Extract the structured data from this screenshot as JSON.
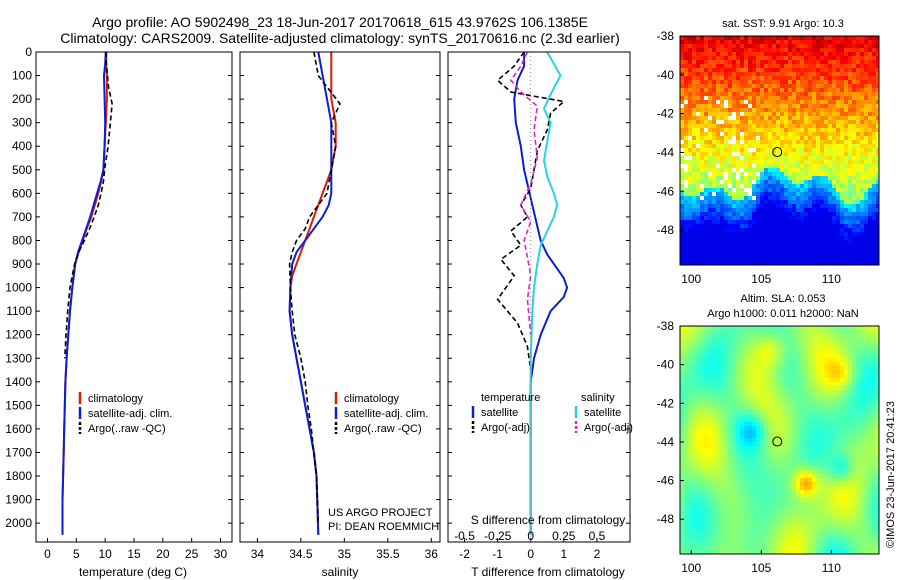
{
  "header": {
    "line1": "Argo profile: AO 5902498_23 18-Jun-2017 20170618_615 43.9762S 106.1385E",
    "line2": "Climatology: CARS2009. Satellite-adjusted climatology: synTS_20170616.nc (2.3d earlier)"
  },
  "side_label": "©IMOS 23-Jun-2017 20:41:23",
  "project_credit": {
    "line1": "US ARGO PROJECT",
    "line2": "PI: DEAN ROEMMICH"
  },
  "colors": {
    "climatology": "#d81e05",
    "satellite": "#0a1ed8",
    "argo": "#000000",
    "satellite_diff": "#22d5e0",
    "argo_sal_diff": "#e020d0"
  },
  "chart_data": [
    {
      "type": "line",
      "id": "temperature",
      "xlabel": "temperature (deg C)",
      "ylabel": "",
      "xlim": [
        -2,
        32
      ],
      "ylim": [
        2080,
        0
      ],
      "xticks": [
        0,
        5,
        10,
        15,
        20,
        25,
        30
      ],
      "yticks": [
        0,
        100,
        200,
        300,
        400,
        500,
        600,
        700,
        800,
        900,
        1000,
        1100,
        1200,
        1300,
        1400,
        1500,
        1600,
        1700,
        1800,
        1900,
        2000
      ],
      "legend": [
        "climatology",
        "satellite-adj. clim.",
        "Argo(..raw -QC)"
      ],
      "series": [
        {
          "name": "climatology",
          "x": [
            10.2,
            10.2,
            10.3,
            10.3,
            10.1,
            9.9,
            9.7,
            9.3,
            8.8,
            8.2,
            7.6,
            6.8,
            6.1,
            5.4,
            4.8,
            4.3,
            3.9,
            3.6,
            3.3,
            3.1,
            3.0,
            2.9,
            2.8,
            2.7,
            2.6,
            2.6
          ],
          "depth": [
            0,
            50,
            100,
            200,
            300,
            400,
            500,
            550,
            600,
            650,
            700,
            750,
            800,
            850,
            900,
            1000,
            1100,
            1200,
            1300,
            1400,
            1500,
            1600,
            1700,
            1800,
            1900,
            2050
          ]
        },
        {
          "name": "satellite-adj. clim.",
          "x": [
            10.1,
            10.0,
            9.8,
            9.9,
            10.0,
            9.9,
            9.7,
            9.2,
            8.6,
            8.0,
            7.4,
            6.7,
            6.0,
            5.3,
            4.8,
            4.3,
            3.9,
            3.6,
            3.3,
            3.1,
            3.0,
            2.9,
            2.8,
            2.7,
            2.6,
            2.6
          ],
          "depth": [
            0,
            50,
            100,
            200,
            300,
            400,
            500,
            550,
            600,
            650,
            700,
            750,
            800,
            850,
            900,
            1000,
            1100,
            1200,
            1300,
            1400,
            1500,
            1600,
            1700,
            1800,
            1900,
            2050
          ]
        },
        {
          "name": "Argo(..raw -QC)",
          "x": [
            10.1,
            10.2,
            10.6,
            11.2,
            10.9,
            10.5,
            10.2,
            9.9,
            9.7,
            9.3,
            8.8,
            8.1,
            7.3,
            6.4,
            5.4,
            4.7,
            4.3,
            3.9,
            3.5,
            3.2,
            3.0
          ],
          "depth": [
            0,
            50,
            150,
            220,
            300,
            400,
            450,
            500,
            550,
            600,
            650,
            700,
            750,
            800,
            850,
            900,
            950,
            1000,
            1100,
            1200,
            1300
          ]
        }
      ]
    },
    {
      "type": "line",
      "id": "salinity",
      "xlabel": "salinity",
      "ylabel": "",
      "xlim": [
        33.8,
        36.1
      ],
      "ylim": [
        2080,
        0
      ],
      "xticks": [
        34,
        34.5,
        35,
        35.5,
        36
      ],
      "legend": [
        "climatology",
        "satellite-adj. clim.",
        "Argo(..raw -QC)"
      ],
      "series": [
        {
          "name": "climatology",
          "x": [
            34.85,
            34.85,
            34.85,
            34.9,
            34.9,
            34.85,
            34.8,
            34.75,
            34.7,
            34.65,
            34.6,
            34.55,
            34.5,
            34.45,
            34.4,
            34.38,
            34.37,
            34.4,
            34.45,
            34.5,
            34.55,
            34.6,
            34.65,
            34.68,
            34.7
          ],
          "depth": [
            0,
            100,
            200,
            300,
            400,
            500,
            550,
            600,
            650,
            700,
            750,
            800,
            850,
            900,
            950,
            1000,
            1100,
            1200,
            1300,
            1400,
            1500,
            1600,
            1700,
            1800,
            2050
          ]
        },
        {
          "name": "satellite-adj. clim.",
          "x": [
            34.7,
            34.75,
            34.8,
            34.85,
            34.85,
            34.85,
            34.85,
            34.82,
            34.75,
            34.65,
            34.55,
            34.45,
            34.4,
            34.38,
            34.37,
            34.4,
            34.45,
            34.5,
            34.55,
            34.6,
            34.65,
            34.68,
            34.7
          ],
          "depth": [
            0,
            100,
            200,
            300,
            400,
            500,
            600,
            650,
            700,
            750,
            800,
            850,
            900,
            1000,
            1100,
            1200,
            1300,
            1400,
            1500,
            1600,
            1700,
            1800,
            2050
          ]
        },
        {
          "name": "Argo(..raw -QC)",
          "x": [
            34.65,
            34.7,
            34.95,
            34.85,
            34.9,
            34.85,
            34.8,
            34.7,
            34.6,
            34.55,
            34.45,
            34.4,
            34.37,
            34.38,
            34.4,
            34.43,
            34.5,
            34.55,
            34.58,
            34.62,
            34.65,
            34.68,
            34.7
          ],
          "depth": [
            0,
            100,
            220,
            300,
            400,
            500,
            600,
            650,
            700,
            750,
            800,
            850,
            900,
            1000,
            1100,
            1200,
            1300,
            1400,
            1500,
            1600,
            1700,
            1800,
            2000
          ]
        }
      ]
    },
    {
      "type": "line",
      "id": "differences",
      "xlabel": "T difference from climatology",
      "xlabel_top": "S difference from climatology",
      "ylabel": "",
      "xlim": [
        -2.5,
        3.0
      ],
      "ylim": [
        2080,
        0
      ],
      "xticks": [
        -2,
        -1,
        0,
        1,
        2
      ],
      "xticks_top": [
        -0.5,
        -0.25,
        0,
        0.25,
        0.5
      ],
      "legend_titles": [
        "temperature",
        "salinity"
      ],
      "legend": [
        "satellite",
        "Argo(-adj)",
        "satellite",
        "Argo(-adj)"
      ],
      "series": [
        {
          "name": "temperature satellite",
          "x": [
            -0.2,
            -0.2,
            -0.4,
            -0.5,
            -0.45,
            -0.3,
            -0.2,
            -0.1,
            0.0,
            0.1,
            0.2,
            0.3,
            0.5,
            0.8,
            1.0,
            1.1,
            1.0,
            0.6,
            0.3,
            0.1,
            0.0,
            0.0,
            0.0
          ],
          "depth": [
            0,
            60,
            120,
            200,
            300,
            400,
            500,
            560,
            620,
            680,
            740,
            800,
            860,
            920,
            960,
            1000,
            1040,
            1100,
            1200,
            1300,
            1400,
            1600,
            2050
          ]
        },
        {
          "name": "temperature Argo(-adj)",
          "x": [
            -0.2,
            -0.5,
            -1.0,
            -0.6,
            1.0,
            0.6,
            0.5,
            0.2,
            0.1,
            0.0,
            -0.3,
            -0.1,
            -0.6,
            -0.3,
            -0.9,
            -0.5,
            -1.0,
            -0.4,
            -0.1,
            0.0
          ],
          "depth": [
            0,
            60,
            120,
            170,
            210,
            260,
            330,
            420,
            500,
            580,
            650,
            700,
            760,
            820,
            880,
            950,
            1050,
            1150,
            1250,
            1350
          ]
        },
        {
          "name": "salinity satellite",
          "x": [
            0.5,
            0.9,
            0.6,
            0.4,
            0.6,
            0.5,
            0.4,
            0.5,
            0.7,
            0.8,
            0.7,
            0.5,
            0.3,
            0.2,
            0.1,
            0.05,
            0.0,
            0.0,
            0.0
          ],
          "depth": [
            0,
            100,
            180,
            240,
            300,
            380,
            460,
            530,
            600,
            650,
            700,
            760,
            820,
            900,
            1000,
            1100,
            1300,
            1600,
            2050
          ]
        },
        {
          "name": "salinity Argo(-adj)",
          "x": [
            -0.1,
            -0.3,
            -0.6,
            -0.3,
            0.2,
            0.1,
            0.2,
            0.0,
            -0.3,
            0.0,
            -0.2,
            -0.1,
            0.0,
            -0.1,
            0.0
          ],
          "depth": [
            0,
            60,
            120,
            170,
            230,
            330,
            450,
            560,
            650,
            720,
            800,
            870,
            950,
            1050,
            1200
          ]
        }
      ]
    },
    {
      "type": "heatmap",
      "id": "sst_map",
      "title": "sat. SST: 9.91  Argo: 10.3",
      "xlim": [
        99.2,
        113.4
      ],
      "ylim": [
        -49.8,
        -38
      ],
      "xticks": [
        100,
        105,
        110
      ],
      "yticks": [
        -38,
        -40,
        -42,
        -44,
        -46,
        -48
      ],
      "marker": {
        "lon": 106.14,
        "lat": -43.98
      }
    },
    {
      "type": "heatmap",
      "id": "sla_map",
      "title": "Altim. SLA: 0.053",
      "subtitle": "Argo h1000: 0.011  h2000: NaN",
      "xlim": [
        99.2,
        113.4
      ],
      "ylim": [
        -49.8,
        -38
      ],
      "xticks": [
        100,
        105,
        110
      ],
      "yticks": [
        -38,
        -40,
        -42,
        -44,
        -46,
        -48
      ],
      "marker": {
        "lon": 106.14,
        "lat": -43.98
      }
    }
  ]
}
